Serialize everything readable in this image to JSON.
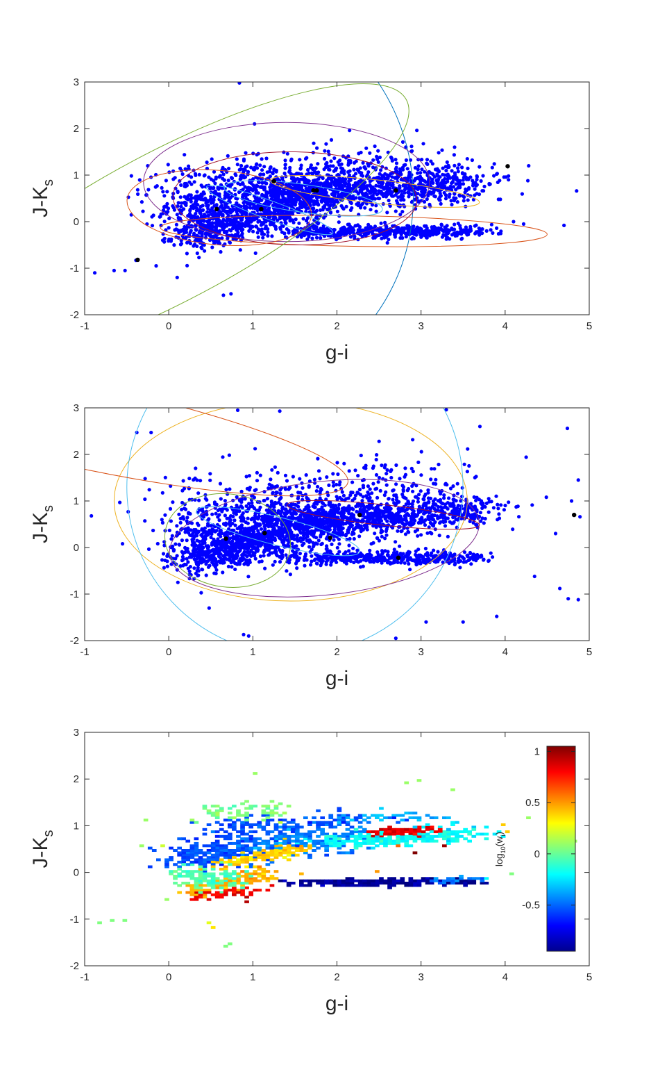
{
  "figure_colors": {
    "points": "#0000ff",
    "centers": "#000000",
    "axis": "#262626",
    "ellipse_palette": [
      "#0072bd",
      "#d95319",
      "#edb120",
      "#7e2f8e",
      "#77ac30",
      "#4dbeee",
      "#a2142f"
    ]
  },
  "chart_data": [
    {
      "type": "scatter",
      "xlabel": "g-i",
      "ylabel": "J-K",
      "ylabel_sub": "s",
      "xlim": [
        -1,
        5
      ],
      "ylim": [
        -2,
        3
      ],
      "xticks": [
        "-1",
        "0",
        "1",
        "2",
        "3",
        "4",
        "5"
      ],
      "yticks": [
        "-2",
        "-1",
        "0",
        "1",
        "2",
        "3"
      ],
      "clusters": [
        {
          "cx": 0.6,
          "cy": 0.6,
          "rx": 2.3,
          "ry": 4.3,
          "angle": -18,
          "color": "#0072bd"
        },
        {
          "cx": 2.2,
          "cy": -0.2,
          "rx": 2.3,
          "ry": 0.33,
          "angle": 1,
          "color": "#d95319"
        },
        {
          "cx": 2.45,
          "cy": 0.65,
          "rx": 1.25,
          "ry": 0.25,
          "angle": 6,
          "color": "#edb120"
        },
        {
          "cx": 1.4,
          "cy": 0.85,
          "rx": 1.7,
          "ry": 1.28,
          "angle": 0,
          "color": "#7e2f8e"
        },
        {
          "cx": 1.5,
          "cy": 0.5,
          "rx": 1.45,
          "ry": 1.0,
          "angle": 1,
          "color": "#a2142f"
        },
        {
          "cx": 0.0,
          "cy": -0.1,
          "rx": 3.2,
          "ry": 1.6,
          "angle": -28,
          "color": "#77ac30"
        },
        {
          "cx": 0.6,
          "cy": 0.3,
          "rx": 1.1,
          "ry": 0.8,
          "angle": 5,
          "color": "#d95319"
        },
        {
          "cx": 1.6,
          "cy": 0.5,
          "rx": 0.95,
          "ry": 0.3,
          "angle": 8,
          "color": "#4dbeee"
        },
        {
          "cx": 1.2,
          "cy": 0.25,
          "rx": 0.8,
          "ry": 0.2,
          "angle": 20,
          "color": "#4dbeee"
        }
      ],
      "centers": [
        {
          "x": -0.37,
          "y": -0.82
        },
        {
          "x": 0.57,
          "y": 0.27
        },
        {
          "x": 1.1,
          "y": 0.27
        },
        {
          "x": 1.25,
          "y": 0.87
        },
        {
          "x": 1.72,
          "y": 0.67
        },
        {
          "x": 1.76,
          "y": 0.67
        },
        {
          "x": 2.7,
          "y": 0.67
        },
        {
          "x": 4.03,
          "y": 1.19
        }
      ],
      "outliers": [
        {
          "x": -0.88,
          "y": -1.1
        },
        {
          "x": -0.65,
          "y": -1.05
        },
        {
          "x": -0.52,
          "y": -1.05
        },
        {
          "x": -0.39,
          "y": -0.83
        },
        {
          "x": 0.65,
          "y": -1.58
        },
        {
          "x": 0.74,
          "y": -1.55
        },
        {
          "x": 0.84,
          "y": 2.98
        },
        {
          "x": 1.02,
          "y": 2.1
        },
        {
          "x": 2.15,
          "y": 1.96
        },
        {
          "x": 2.95,
          "y": 1.96
        },
        {
          "x": 4.04,
          "y": 0.9
        },
        {
          "x": 4.04,
          "y": 0.98
        },
        {
          "x": 4.28,
          "y": 1.2
        },
        {
          "x": 4.27,
          "y": 0.88
        },
        {
          "x": 4.1,
          "y": 0.0
        },
        {
          "x": 4.22,
          "y": -0.05
        },
        {
          "x": 4.7,
          "y": -0.08
        },
        {
          "x": 4.85,
          "y": 0.66
        },
        {
          "x": 3.78,
          "y": -0.2
        },
        {
          "x": 3.55,
          "y": 1.35
        },
        {
          "x": -0.25,
          "y": 1.2
        },
        {
          "x": -0.15,
          "y": -0.95
        },
        {
          "x": 0.1,
          "y": -1.2
        }
      ],
      "bands": [
        {
          "x0": 0.1,
          "y0": 0.2,
          "x1": 2.0,
          "y1": 0.7,
          "sx": 0.45,
          "sy": 0.36,
          "n": 900
        },
        {
          "x0": 1.3,
          "y0": 0.55,
          "x1": 3.6,
          "y1": 0.82,
          "sx": 0.55,
          "sy": 0.2,
          "n": 900
        },
        {
          "x0": 0.2,
          "y0": -0.35,
          "x1": 1.4,
          "y1": 0.3,
          "sx": 0.3,
          "sy": 0.18,
          "n": 400
        },
        {
          "x0": 1.5,
          "y0": -0.22,
          "x1": 3.7,
          "y1": -0.2,
          "sx": 0.5,
          "sy": 0.07,
          "n": 500
        },
        {
          "x0": 0.2,
          "y0": 0.9,
          "x1": 3.0,
          "y1": 1.25,
          "sx": 0.9,
          "sy": 0.25,
          "n": 280
        }
      ]
    },
    {
      "type": "scatter",
      "xlabel": "g-i",
      "ylabel": "J-K",
      "ylabel_sub": "s",
      "xlim": [
        -1,
        5
      ],
      "ylim": [
        -2,
        3
      ],
      "xticks": [
        "-1",
        "0",
        "1",
        "2",
        "3",
        "4",
        "5"
      ],
      "yticks": [
        "-2",
        "-1",
        "0",
        "1",
        "2",
        "3"
      ],
      "clusters": [
        {
          "cx": 1.45,
          "cy": 1.0,
          "rx": 2.1,
          "ry": 2.15,
          "angle": 0,
          "color": "#edb120"
        },
        {
          "cx": 1.5,
          "cy": 1.3,
          "rx": 2.0,
          "ry": 3.6,
          "angle": -25,
          "color": "#4dbeee"
        },
        {
          "cx": -1.0,
          "cy": 2.6,
          "rx": 3.2,
          "ry": 0.9,
          "angle": 12,
          "color": "#d95319"
        },
        {
          "cx": 1.85,
          "cy": 0.2,
          "rx": 1.85,
          "ry": 1.22,
          "angle": -6,
          "color": "#7e2f8e"
        },
        {
          "cx": 2.55,
          "cy": 0.7,
          "rx": 1.15,
          "ry": 0.22,
          "angle": 6,
          "color": "#a2142f"
        },
        {
          "cx": 0.7,
          "cy": 0.15,
          "rx": 0.75,
          "ry": 1.0,
          "angle": 8,
          "color": "#77ac30"
        },
        {
          "cx": 1.3,
          "cy": 0.35,
          "rx": 1.0,
          "ry": 0.3,
          "angle": 14,
          "color": "#4dbeee"
        }
      ],
      "centers": [
        {
          "x": 0.68,
          "y": 0.19
        },
        {
          "x": 1.14,
          "y": 0.31
        },
        {
          "x": 1.92,
          "y": 0.21
        },
        {
          "x": 2.27,
          "y": 0.7
        },
        {
          "x": 2.73,
          "y": -0.22
        },
        {
          "x": 4.82,
          "y": 0.7
        }
      ],
      "outliers": [
        {
          "x": -0.92,
          "y": 0.68
        },
        {
          "x": -0.55,
          "y": 0.08
        },
        {
          "x": -0.38,
          "y": 2.47
        },
        {
          "x": -0.21,
          "y": 2.47
        },
        {
          "x": 0.82,
          "y": 2.95
        },
        {
          "x": 1.32,
          "y": 2.93
        },
        {
          "x": 3.3,
          "y": 2.96
        },
        {
          "x": 3.7,
          "y": 2.6
        },
        {
          "x": 4.25,
          "y": 1.94
        },
        {
          "x": 4.74,
          "y": 2.56
        },
        {
          "x": 4.87,
          "y": 1.45
        },
        {
          "x": 4.49,
          "y": 1.08
        },
        {
          "x": 4.79,
          "y": 1.0
        },
        {
          "x": 4.89,
          "y": 0.66
        },
        {
          "x": 4.6,
          "y": 0.3
        },
        {
          "x": 4.35,
          "y": -0.62
        },
        {
          "x": 4.75,
          "y": -1.1
        },
        {
          "x": 4.87,
          "y": -1.12
        },
        {
          "x": 4.65,
          "y": -0.88
        },
        {
          "x": 3.9,
          "y": -1.48
        },
        {
          "x": 3.5,
          "y": -1.6
        },
        {
          "x": 3.06,
          "y": -1.6
        },
        {
          "x": 2.7,
          "y": -1.95
        },
        {
          "x": 0.95,
          "y": -1.9
        },
        {
          "x": 0.89,
          "y": -1.87
        },
        {
          "x": 0.48,
          "y": -1.3
        },
        {
          "x": 3.83,
          "y": -0.12
        }
      ],
      "bands": [
        {
          "x0": 0.2,
          "y0": 0.15,
          "x1": 2.0,
          "y1": 0.6,
          "sx": 0.45,
          "sy": 0.33,
          "n": 900
        },
        {
          "x0": 1.3,
          "y0": 0.5,
          "x1": 3.65,
          "y1": 0.82,
          "sx": 0.55,
          "sy": 0.2,
          "n": 900
        },
        {
          "x0": 0.2,
          "y0": -0.35,
          "x1": 1.3,
          "y1": 0.25,
          "sx": 0.3,
          "sy": 0.18,
          "n": 400
        },
        {
          "x0": 1.5,
          "y0": -0.22,
          "x1": 3.6,
          "y1": -0.22,
          "sx": 0.5,
          "sy": 0.07,
          "n": 450
        },
        {
          "x0": 0.2,
          "y0": 0.9,
          "x1": 3.2,
          "y1": 1.4,
          "sx": 0.9,
          "sy": 0.4,
          "n": 350
        }
      ]
    },
    {
      "type": "heatmap",
      "xlabel": "g-i",
      "ylabel": "J-K",
      "ylabel_sub": "s",
      "xlim": [
        -1,
        5
      ],
      "ylim": [
        -2,
        3
      ],
      "xticks": [
        "-1",
        "0",
        "1",
        "2",
        "3",
        "4",
        "5"
      ],
      "yticks": [
        "-2",
        "-1",
        "0",
        "1",
        "2",
        "3"
      ],
      "colorbar": {
        "label": "log",
        "label_sub": "10",
        "label_arg": "(w",
        "label_arg_sub": "i",
        "label_close": ")",
        "range": [
          -0.95,
          1.05
        ],
        "ticks": [
          "-0.5",
          "0",
          "0.5",
          "1"
        ],
        "tick_values": [
          -0.5,
          0,
          0.5,
          1
        ],
        "colormap": "jet"
      },
      "regions": [
        {
          "x0": 0.1,
          "y0": 0.3,
          "x1": 1.0,
          "y1": 0.6,
          "sx": 0.35,
          "sy": 0.3,
          "w": -0.55,
          "n": 260
        },
        {
          "x0": 1.0,
          "y0": 0.5,
          "x1": 2.2,
          "y1": 0.8,
          "sx": 0.4,
          "sy": 0.28,
          "w": -0.45,
          "n": 240
        },
        {
          "x0": 2.0,
          "y0": 0.65,
          "x1": 3.6,
          "y1": 0.85,
          "sx": 0.5,
          "sy": 0.14,
          "w": -0.2,
          "n": 260
        },
        {
          "x0": 0.6,
          "y0": 0.15,
          "x1": 1.6,
          "y1": 0.55,
          "sx": 0.3,
          "sy": 0.1,
          "w": 0.4,
          "n": 120
        },
        {
          "x0": 2.5,
          "y0": 0.85,
          "x1": 3.1,
          "y1": 0.92,
          "sx": 0.25,
          "sy": 0.06,
          "w": 0.85,
          "n": 110
        },
        {
          "x0": 0.3,
          "y0": -0.45,
          "x1": 1.2,
          "y1": 0.0,
          "sx": 0.25,
          "sy": 0.12,
          "w": 0.45,
          "n": 140
        },
        {
          "x0": 0.3,
          "y0": -0.55,
          "x1": 1.0,
          "y1": -0.35,
          "sx": 0.2,
          "sy": 0.08,
          "w": 0.8,
          "n": 50
        },
        {
          "x0": 1.6,
          "y0": -0.22,
          "x1": 3.5,
          "y1": -0.2,
          "sx": 0.45,
          "sy": 0.06,
          "w": -0.9,
          "n": 230
        },
        {
          "x0": 3.2,
          "y0": -0.18,
          "x1": 3.7,
          "y1": -0.15,
          "sx": 0.2,
          "sy": 0.05,
          "w": -0.45,
          "n": 30
        },
        {
          "x0": 0.1,
          "y0": 0.0,
          "x1": 0.8,
          "y1": -0.2,
          "sx": 0.3,
          "sy": 0.2,
          "w": -0.05,
          "n": 110
        },
        {
          "x0": 0.6,
          "y0": 1.0,
          "x1": 2.5,
          "y1": 1.15,
          "sx": 0.6,
          "sy": 0.15,
          "w": -0.55,
          "n": 120
        },
        {
          "x0": 0.5,
          "y0": 1.3,
          "x1": 1.4,
          "y1": 1.3,
          "sx": 0.35,
          "sy": 0.2,
          "w": 0.05,
          "n": 60
        },
        {
          "x0": 2.3,
          "y0": 1.2,
          "x1": 3.3,
          "y1": 1.2,
          "sx": 0.35,
          "sy": 0.12,
          "w": -0.35,
          "n": 40
        }
      ],
      "cells": [
        {
          "x": -0.85,
          "y": -1.1,
          "w": 0.05
        },
        {
          "x": -0.67,
          "y": -1.05,
          "w": 0.05
        },
        {
          "x": -0.53,
          "y": -1.05,
          "w": 0.05
        },
        {
          "x": 0.65,
          "y": -1.58,
          "w": 0.05
        },
        {
          "x": 0.74,
          "y": -1.55,
          "w": 0.05
        },
        {
          "x": 1.02,
          "y": 2.1,
          "w": 0.1
        },
        {
          "x": 2.95,
          "y": 1.96,
          "w": 0.1
        },
        {
          "x": 2.82,
          "y": 1.94,
          "w": 0.1
        },
        {
          "x": 3.35,
          "y": 1.75,
          "w": 0.1
        },
        {
          "x": 3.95,
          "y": 1.0,
          "w": 0.4
        },
        {
          "x": 4.03,
          "y": 0.88,
          "w": 0.4
        },
        {
          "x": 4.28,
          "y": 1.18,
          "w": 0.1
        },
        {
          "x": 4.85,
          "y": 0.66,
          "w": 0.1
        },
        {
          "x": 4.1,
          "y": -0.03,
          "w": 0.05
        },
        {
          "x": 3.78,
          "y": -0.12,
          "w": -0.2
        },
        {
          "x": -0.3,
          "y": 1.1,
          "w": 0.1
        },
        {
          "x": -0.1,
          "y": 0.6,
          "w": 0.2
        },
        {
          "x": -0.35,
          "y": 0.6,
          "w": 0.1
        },
        {
          "x": 2.92,
          "y": 0.42,
          "w": 1.05
        },
        {
          "x": 3.25,
          "y": 0.58,
          "w": 1.0
        },
        {
          "x": 2.7,
          "y": 0.55,
          "w": 0.6
        },
        {
          "x": 0.92,
          "y": -0.55,
          "w": 0.95
        },
        {
          "x": 0.91,
          "y": -0.65,
          "w": 0.95
        },
        {
          "x": 0.45,
          "y": -1.1,
          "w": 0.25
        },
        {
          "x": 0.5,
          "y": -1.2,
          "w": 0.35
        },
        {
          "x": -0.05,
          "y": -0.6,
          "w": 0.1
        },
        {
          "x": 1.55,
          "y": -0.05,
          "w": 0.45
        },
        {
          "x": 2.45,
          "y": 0.0,
          "w": 0.5
        }
      ]
    }
  ]
}
